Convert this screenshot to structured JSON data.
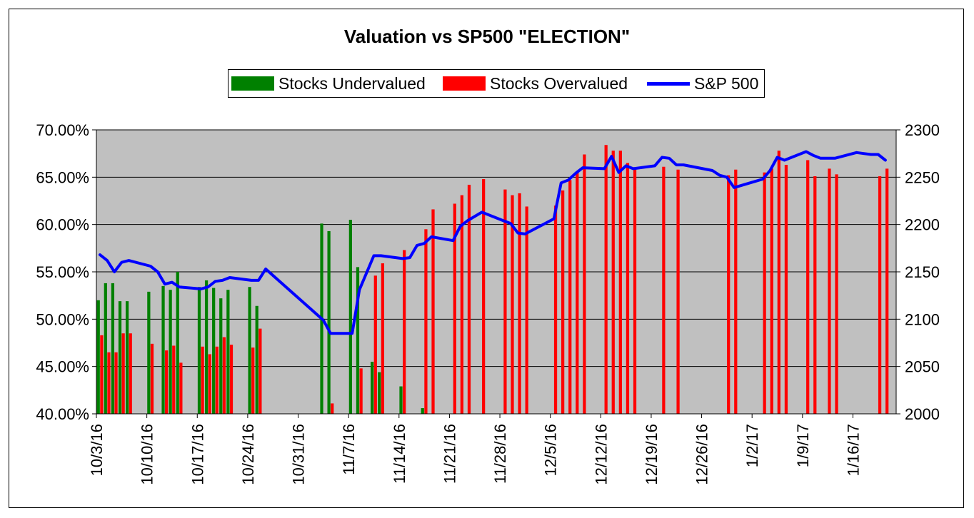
{
  "chart_data": {
    "type": "bar",
    "title": "Valuation vs SP500 \"ELECTION\"",
    "legend": [
      {
        "label": "Stocks Undervalued",
        "kind": "bar",
        "color": "#008000"
      },
      {
        "label": "Stocks Overvalued",
        "kind": "bar",
        "color": "#ff0000"
      },
      {
        "label": "S&P 500",
        "kind": "line",
        "color": "#0000ff"
      }
    ],
    "legend_placement": "top-center",
    "plot_background": "#c0c0c0",
    "grid": true,
    "x_range": [
      "2016-10-03",
      "2017-01-22"
    ],
    "x_ticks": [
      "10/3/16",
      "10/10/16",
      "10/17/16",
      "10/24/16",
      "10/31/16",
      "11/7/16",
      "11/14/16",
      "11/21/16",
      "11/28/16",
      "12/5/16",
      "12/12/16",
      "12/19/16",
      "12/26/16",
      "1/2/17",
      "1/9/17",
      "1/16/17"
    ],
    "x_tick_dates": [
      "2016-10-03",
      "2016-10-10",
      "2016-10-17",
      "2016-10-24",
      "2016-10-31",
      "2016-11-07",
      "2016-11-14",
      "2016-11-21",
      "2016-11-28",
      "2016-12-05",
      "2016-12-12",
      "2016-12-19",
      "2016-12-26",
      "2017-01-02",
      "2017-01-09",
      "2017-01-16"
    ],
    "y_left": {
      "min": 40,
      "max": 70,
      "ticks": [
        "40.00%",
        "45.00%",
        "50.00%",
        "55.00%",
        "60.00%",
        "65.00%",
        "70.00%"
      ]
    },
    "y_right": {
      "min": 2000,
      "max": 2300,
      "ticks": [
        "2000",
        "2050",
        "2100",
        "2150",
        "2200",
        "2250",
        "2300"
      ]
    },
    "series": [
      {
        "name": "Stocks Undervalued",
        "color": "#008000",
        "points": [
          [
            "2016-10-03",
            52.0
          ],
          [
            "2016-10-04",
            53.8
          ],
          [
            "2016-10-05",
            53.8
          ],
          [
            "2016-10-06",
            51.9
          ],
          [
            "2016-10-07",
            51.9
          ],
          [
            "2016-10-10",
            52.9
          ],
          [
            "2016-10-12",
            53.5
          ],
          [
            "2016-10-13",
            53.1
          ],
          [
            "2016-10-14",
            55.0
          ],
          [
            "2016-10-17",
            53.4
          ],
          [
            "2016-10-18",
            54.1
          ],
          [
            "2016-10-19",
            53.3
          ],
          [
            "2016-10-20",
            52.2
          ],
          [
            "2016-10-21",
            53.1
          ],
          [
            "2016-10-24",
            53.4
          ],
          [
            "2016-10-25",
            51.4
          ],
          [
            "2016-11-03",
            60.1
          ],
          [
            "2016-11-04",
            59.3
          ],
          [
            "2016-11-07",
            60.5
          ],
          [
            "2016-11-08",
            55.5
          ],
          [
            "2016-11-10",
            45.5
          ],
          [
            "2016-11-11",
            44.4
          ],
          [
            "2016-11-14",
            42.9
          ],
          [
            "2016-11-17",
            40.6
          ]
        ]
      },
      {
        "name": "Stocks Overvalued",
        "color": "#ff0000",
        "points": [
          [
            "2016-10-03",
            48.3
          ],
          [
            "2016-10-04",
            46.5
          ],
          [
            "2016-10-05",
            46.5
          ],
          [
            "2016-10-06",
            48.5
          ],
          [
            "2016-10-07",
            48.5
          ],
          [
            "2016-10-10",
            47.4
          ],
          [
            "2016-10-12",
            46.7
          ],
          [
            "2016-10-13",
            47.2
          ],
          [
            "2016-10-14",
            45.4
          ],
          [
            "2016-10-17",
            47.1
          ],
          [
            "2016-10-18",
            46.3
          ],
          [
            "2016-10-19",
            47.1
          ],
          [
            "2016-10-20",
            48.1
          ],
          [
            "2016-10-21",
            47.3
          ],
          [
            "2016-10-24",
            47.0
          ],
          [
            "2016-10-25",
            49.0
          ],
          [
            "2016-11-04",
            41.1
          ],
          [
            "2016-11-08",
            44.8
          ],
          [
            "2016-11-10",
            54.6
          ],
          [
            "2016-11-11",
            55.9
          ],
          [
            "2016-11-14",
            57.3
          ],
          [
            "2016-11-17",
            59.5
          ],
          [
            "2016-11-18",
            61.6
          ],
          [
            "2016-11-21",
            62.2
          ],
          [
            "2016-11-22",
            63.1
          ],
          [
            "2016-11-23",
            64.2
          ],
          [
            "2016-11-25",
            64.8
          ],
          [
            "2016-11-28",
            63.7
          ],
          [
            "2016-11-29",
            63.1
          ],
          [
            "2016-11-30",
            63.3
          ],
          [
            "2016-12-01",
            61.9
          ],
          [
            "2016-12-05",
            62.0
          ],
          [
            "2016-12-06",
            63.6
          ],
          [
            "2016-12-07",
            64.7
          ],
          [
            "2016-12-08",
            65.6
          ],
          [
            "2016-12-09",
            67.4
          ],
          [
            "2016-12-12",
            68.4
          ],
          [
            "2016-12-13",
            67.8
          ],
          [
            "2016-12-14",
            67.8
          ],
          [
            "2016-12-15",
            66.5
          ],
          [
            "2016-12-16",
            66.0
          ],
          [
            "2016-12-20",
            66.1
          ],
          [
            "2016-12-22",
            65.8
          ],
          [
            "2016-12-29",
            65.2
          ],
          [
            "2016-12-30",
            65.8
          ],
          [
            "2017-01-03",
            65.5
          ],
          [
            "2017-01-04",
            65.9
          ],
          [
            "2017-01-05",
            67.8
          ],
          [
            "2017-01-06",
            66.3
          ],
          [
            "2017-01-09",
            66.8
          ],
          [
            "2017-01-10",
            65.1
          ],
          [
            "2017-01-12",
            65.9
          ],
          [
            "2017-01-13",
            65.3
          ],
          [
            "2017-01-19",
            65.1
          ],
          [
            "2017-01-20",
            65.9
          ]
        ]
      },
      {
        "name": "S&P 500",
        "color": "#0000ff",
        "axis": "right",
        "points": [
          [
            "2016-10-03",
            2168
          ],
          [
            "2016-10-04",
            2162
          ],
          [
            "2016-10-05",
            2150
          ],
          [
            "2016-10-06",
            2160
          ],
          [
            "2016-10-07",
            2162
          ],
          [
            "2016-10-10",
            2156
          ],
          [
            "2016-10-11",
            2150
          ],
          [
            "2016-10-12",
            2137
          ],
          [
            "2016-10-13",
            2139
          ],
          [
            "2016-10-14",
            2134
          ],
          [
            "2016-10-17",
            2132
          ],
          [
            "2016-10-18",
            2134
          ],
          [
            "2016-10-19",
            2140
          ],
          [
            "2016-10-20",
            2141
          ],
          [
            "2016-10-21",
            2144
          ],
          [
            "2016-10-24",
            2141
          ],
          [
            "2016-10-25",
            2141
          ],
          [
            "2016-10-26",
            2153
          ],
          [
            "2016-11-03",
            2099
          ],
          [
            "2016-11-04",
            2085
          ],
          [
            "2016-11-07",
            2085
          ],
          [
            "2016-11-08",
            2131
          ],
          [
            "2016-11-10",
            2167
          ],
          [
            "2016-11-11",
            2167
          ],
          [
            "2016-11-14",
            2164
          ],
          [
            "2016-11-15",
            2165
          ],
          [
            "2016-11-16",
            2178
          ],
          [
            "2016-11-17",
            2180
          ],
          [
            "2016-11-18",
            2187
          ],
          [
            "2016-11-21",
            2183
          ],
          [
            "2016-11-22",
            2198
          ],
          [
            "2016-11-23",
            2204
          ],
          [
            "2016-11-25",
            2213
          ],
          [
            "2016-11-28",
            2204
          ],
          [
            "2016-11-29",
            2201
          ],
          [
            "2016-11-30",
            2191
          ],
          [
            "2016-12-01",
            2190
          ],
          [
            "2016-12-05",
            2206
          ],
          [
            "2016-12-06",
            2244
          ],
          [
            "2016-12-07",
            2247
          ],
          [
            "2016-12-08",
            2254
          ],
          [
            "2016-12-09",
            2260
          ],
          [
            "2016-12-12",
            2259
          ],
          [
            "2016-12-13",
            2272
          ],
          [
            "2016-12-14",
            2255
          ],
          [
            "2016-12-15",
            2262
          ],
          [
            "2016-12-16",
            2259
          ],
          [
            "2016-12-19",
            2262
          ],
          [
            "2016-12-20",
            2271
          ],
          [
            "2016-12-21",
            2270
          ],
          [
            "2016-12-22",
            2263
          ],
          [
            "2016-12-23",
            2263
          ],
          [
            "2016-12-27",
            2257
          ],
          [
            "2016-12-28",
            2252
          ],
          [
            "2016-12-29",
            2250
          ],
          [
            "2016-12-30",
            2239
          ],
          [
            "2017-01-03",
            2248
          ],
          [
            "2017-01-04",
            2257
          ],
          [
            "2017-01-05",
            2271
          ],
          [
            "2017-01-06",
            2268
          ],
          [
            "2017-01-09",
            2277
          ],
          [
            "2017-01-10",
            2273
          ],
          [
            "2017-01-11",
            2270
          ],
          [
            "2017-01-12",
            2270
          ],
          [
            "2017-01-13",
            2270
          ],
          [
            "2017-01-16",
            2276
          ],
          [
            "2017-01-17",
            2275
          ],
          [
            "2017-01-18",
            2274
          ],
          [
            "2017-01-19",
            2274
          ],
          [
            "2017-01-20",
            2268
          ]
        ]
      }
    ]
  }
}
